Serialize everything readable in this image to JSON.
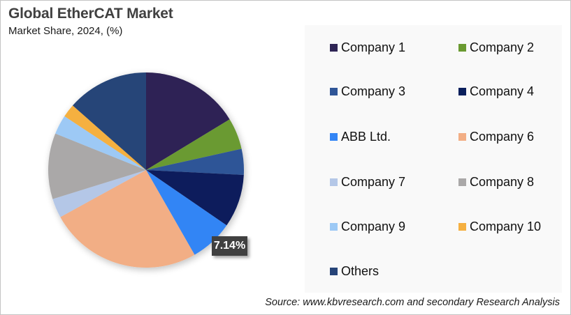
{
  "header": {
    "title": "Global EtherCAT Market",
    "subtitle": "Market Share, 2024, (%)"
  },
  "footer": {
    "source": "Source: www.kbvresearch.com and secondary Research Analysis"
  },
  "data_label": {
    "text": "7.14%",
    "series": "ABB Ltd."
  },
  "chart_data": {
    "type": "pie",
    "title": "Global EtherCAT Market",
    "subtitle": "Market Share, 2024, (%)",
    "start_angle": "12 o'clock, clockwise",
    "legend_position": "right",
    "categories": [
      "Company 1",
      "Company 2",
      "Company 3",
      "Company 4",
      "ABB Ltd.",
      "Company 6",
      "Company 7",
      "Company 8",
      "Company 9",
      "Company 10",
      "Others"
    ],
    "values": [
      16.3,
      5.2,
      4.3,
      8.8,
      7.14,
      25.26,
      3.2,
      10.9,
      3.2,
      2.2,
      13.5
    ],
    "colors": [
      "#2e2454",
      "#6a9a31",
      "#2f5597",
      "#0a1f5c",
      "#3385f5",
      "#f2ae85",
      "#b4c7e7",
      "#aaa8a8",
      "#9dc9f5",
      "#f5b041",
      "#264478"
    ],
    "annotations": [
      {
        "category": "ABB Ltd.",
        "label": "7.14%"
      }
    ]
  },
  "legend": {
    "items": [
      {
        "label": "Company 1",
        "color": "#2e2454"
      },
      {
        "label": "Company 2",
        "color": "#6a9a31"
      },
      {
        "label": "Company 3",
        "color": "#2f5597"
      },
      {
        "label": "Company 4",
        "color": "#0a1f5c"
      },
      {
        "label": "ABB Ltd.",
        "color": "#3385f5"
      },
      {
        "label": "Company 6",
        "color": "#f2ae85"
      },
      {
        "label": "Company 7",
        "color": "#b4c7e7"
      },
      {
        "label": "Company 8",
        "color": "#aaa8a8"
      },
      {
        "label": "Company 9",
        "color": "#9dc9f5"
      },
      {
        "label": "Company 10",
        "color": "#f5b041"
      },
      {
        "label": "Others",
        "color": "#264478"
      }
    ]
  }
}
